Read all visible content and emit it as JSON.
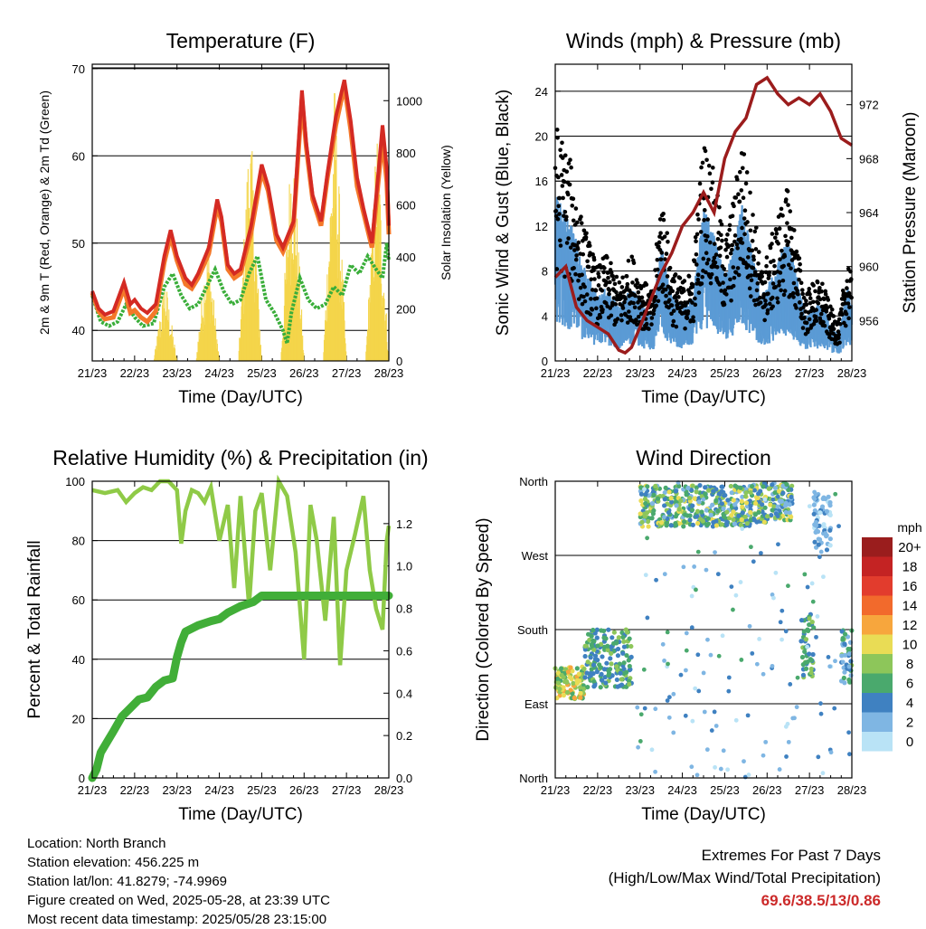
{
  "x_ticks": [
    "21/23",
    "22/23",
    "23/23",
    "24/23",
    "25/23",
    "26/23",
    "27/23",
    "28/23"
  ],
  "colors": {
    "temp_2m": "#d42a23",
    "temp_9m": "#f4782a",
    "dewpoint": "#3aae3a",
    "solar": "#f4d54a",
    "wind": "#5b9bd5",
    "gust": "#000000",
    "pressure": "#9b1c1c",
    "rh": "#8fca47",
    "precip": "#41ae38"
  },
  "chart_data": [
    {
      "type": "line",
      "title": "Temperature (F)",
      "xlabel": "Time (Day/UTC)",
      "ylabel": "2m & 9m T (Red, Orange) & 2m Td (Green)",
      "ylabel_right": "Solar Insolation (Yellow)",
      "ylim": [
        36.5,
        70.5
      ],
      "yticks": [
        40,
        50,
        60,
        70
      ],
      "ylim_right": [
        0,
        1140
      ],
      "yticks_right": [
        0,
        200,
        400,
        600,
        800,
        1000
      ],
      "x_days": [
        0,
        7
      ],
      "series": [
        {
          "key": "t2m",
          "x": [
            0,
            0.15,
            0.3,
            0.5,
            0.75,
            0.9,
            1.0,
            1.15,
            1.3,
            1.5,
            1.7,
            1.85,
            2.0,
            2.2,
            2.35,
            2.5,
            2.75,
            2.95,
            3.05,
            3.2,
            3.35,
            3.5,
            3.75,
            4.0,
            4.15,
            4.35,
            4.5,
            4.75,
            4.95,
            5.05,
            5.2,
            5.4,
            5.55,
            5.75,
            5.95,
            6.1,
            6.25,
            6.4,
            6.6,
            6.75,
            6.85,
            6.95,
            7.0
          ],
          "y": [
            44.5,
            42.5,
            41.8,
            42.2,
            45.5,
            43.0,
            43.5,
            42.5,
            42.0,
            43.0,
            48.5,
            51.5,
            48.5,
            46.0,
            45.2,
            46.5,
            49.5,
            55.0,
            53.0,
            47.5,
            46.5,
            47.0,
            52.0,
            59.0,
            56.5,
            51.0,
            49.5,
            52.5,
            67.5,
            61.5,
            55.5,
            52.5,
            58.0,
            64.5,
            68.7,
            64.0,
            57.5,
            54.0,
            50.0,
            58.0,
            63.5,
            58.5,
            52.0
          ]
        },
        {
          "key": "t9m",
          "x": [
            0,
            0.15,
            0.3,
            0.5,
            0.75,
            0.9,
            1.0,
            1.15,
            1.3,
            1.5,
            1.7,
            1.85,
            2.0,
            2.2,
            2.35,
            2.5,
            2.75,
            2.95,
            3.05,
            3.2,
            3.35,
            3.5,
            3.75,
            4.0,
            4.15,
            4.35,
            4.5,
            4.75,
            4.95,
            5.05,
            5.2,
            5.4,
            5.55,
            5.75,
            5.95,
            6.1,
            6.25,
            6.4,
            6.6,
            6.75,
            6.85,
            6.95,
            7.0
          ],
          "y": [
            44.3,
            42.2,
            41.3,
            41.5,
            44.8,
            42.0,
            42.3,
            41.5,
            41.0,
            42.2,
            47.8,
            50.8,
            48.0,
            45.3,
            44.8,
            46.0,
            48.8,
            54.2,
            52.5,
            47.0,
            46.0,
            46.5,
            51.2,
            58.2,
            56.0,
            50.3,
            49.0,
            52.0,
            66.5,
            61.0,
            55.0,
            52.0,
            57.5,
            63.5,
            68.0,
            63.0,
            56.5,
            53.5,
            49.5,
            57.0,
            62.0,
            57.0,
            51.0
          ]
        },
        {
          "key": "td",
          "x": [
            0,
            0.2,
            0.4,
            0.6,
            0.8,
            1.0,
            1.2,
            1.45,
            1.7,
            1.9,
            2.1,
            2.3,
            2.5,
            2.7,
            2.9,
            3.1,
            3.3,
            3.5,
            3.7,
            3.9,
            4.1,
            4.3,
            4.5,
            4.6,
            4.7,
            4.9,
            5.1,
            5.3,
            5.5,
            5.7,
            5.9,
            6.1,
            6.3,
            6.5,
            6.7,
            6.85,
            6.95,
            7.0
          ],
          "y": [
            44.0,
            41.0,
            40.5,
            41.0,
            43.0,
            41.5,
            40.5,
            40.8,
            45.0,
            46.5,
            44.0,
            42.5,
            43.0,
            45.0,
            47.0,
            44.5,
            43.0,
            43.5,
            46.5,
            48.5,
            43.5,
            42.0,
            40.0,
            38.5,
            42.0,
            46.0,
            43.5,
            42.5,
            43.0,
            45.0,
            44.0,
            47.5,
            46.5,
            48.5,
            47.0,
            46.0,
            50.0,
            48.0
          ]
        }
      ],
      "solar_days": [
        {
          "start": 1.45,
          "peak": 1.72,
          "end": 2.0,
          "value": 330
        },
        {
          "start": 2.45,
          "peak": 2.72,
          "end": 3.0,
          "value": 520
        },
        {
          "start": 3.45,
          "peak": 3.72,
          "end": 4.0,
          "value": 1000
        },
        {
          "start": 4.45,
          "peak": 4.72,
          "end": 5.0,
          "value": 970
        },
        {
          "start": 5.45,
          "peak": 5.72,
          "end": 6.0,
          "value": 1100
        },
        {
          "start": 6.45,
          "peak": 6.72,
          "end": 7.0,
          "value": 940
        }
      ]
    },
    {
      "type": "scatter",
      "title": "Winds (mph) & Pressure (mb)",
      "xlabel": "Time (Day/UTC)",
      "ylabel": "Sonic Wind & Gust (Blue, Black)",
      "ylabel_right": "Station Pressure (Maroon)",
      "ylim": [
        0,
        26.4
      ],
      "yticks": [
        0,
        4,
        8,
        12,
        16,
        20,
        24
      ],
      "ylim_right": [
        953,
        975
      ],
      "yticks_right": [
        956,
        960,
        964,
        968,
        972
      ],
      "gust_envelope": {
        "x": [
          0,
          0.25,
          0.45,
          0.6,
          0.8,
          1.0,
          1.2,
          1.5,
          1.8,
          2.1,
          2.3,
          2.5,
          2.75,
          3.0,
          3.25,
          3.5,
          3.75,
          4.0,
          4.2,
          4.4,
          4.6,
          4.75,
          4.85,
          5.0,
          5.25,
          5.5,
          5.7,
          5.9,
          6.1,
          6.3,
          6.5,
          6.7,
          6.9,
          7.0
        ],
        "y": [
          18,
          16,
          14,
          11,
          9,
          7,
          8,
          6,
          8,
          6,
          5,
          13,
          7,
          6,
          7,
          17,
          14,
          9,
          12,
          17,
          13,
          10,
          7,
          8,
          11,
          13,
          9,
          5,
          6,
          6,
          4,
          3,
          8,
          6
        ]
      },
      "pressure": {
        "x": [
          0,
          0.25,
          0.5,
          0.75,
          1.0,
          1.25,
          1.5,
          1.65,
          1.8,
          2.0,
          2.25,
          2.5,
          2.75,
          3.0,
          3.25,
          3.5,
          3.75,
          4.0,
          4.25,
          4.5,
          4.75,
          5.0,
          5.25,
          5.5,
          5.75,
          6.0,
          6.25,
          6.5,
          6.75,
          7.0
        ],
        "y": [
          959.2,
          960.0,
          957.0,
          956.0,
          955.5,
          955.0,
          953.8,
          953.6,
          954.0,
          955.5,
          957.5,
          959.5,
          961.0,
          963.0,
          964.0,
          965.5,
          964.0,
          968.0,
          970.0,
          971.0,
          973.5,
          974.0,
          972.8,
          972.0,
          972.5,
          972.0,
          972.8,
          971.5,
          969.5,
          969.0
        ]
      }
    },
    {
      "type": "line",
      "title": "Relative Humidity (%) & Precipitation (in)",
      "xlabel": "Time (Day/UTC)",
      "ylabel": "Percent & Total Rainfall",
      "ylim": [
        0,
        100
      ],
      "yticks": [
        0,
        20,
        40,
        60,
        80,
        100
      ],
      "ylim_right": [
        0,
        1.4
      ],
      "yticks_right": [
        "0.0",
        "0.2",
        "0.4",
        "0.6",
        "0.8",
        "1.0",
        "1.2"
      ],
      "series": [
        {
          "key": "rh",
          "x": [
            0,
            0.3,
            0.6,
            0.8,
            1.0,
            1.2,
            1.4,
            1.6,
            1.8,
            2.0,
            2.1,
            2.2,
            2.35,
            2.5,
            2.65,
            2.8,
            3.0,
            3.2,
            3.35,
            3.5,
            3.7,
            3.85,
            4.0,
            4.2,
            4.4,
            4.6,
            4.8,
            5.0,
            5.15,
            5.3,
            5.5,
            5.7,
            5.85,
            6.0,
            6.2,
            6.4,
            6.55,
            6.7,
            6.85,
            6.95,
            7.0
          ],
          "y": [
            97,
            96,
            97,
            93,
            96,
            98,
            97,
            100,
            100,
            97,
            79,
            90,
            97,
            96,
            93,
            98,
            80,
            92,
            64,
            95,
            58,
            90,
            96,
            70,
            100,
            95,
            76,
            40,
            92,
            80,
            53,
            88,
            38,
            70,
            82,
            95,
            70,
            57,
            50,
            80,
            85
          ]
        },
        {
          "key": "precip",
          "x": [
            0,
            0.1,
            0.2,
            0.35,
            0.5,
            0.7,
            0.9,
            1.1,
            1.3,
            1.5,
            1.7,
            1.9,
            2.0,
            2.1,
            2.2,
            2.5,
            2.8,
            3.0,
            3.2,
            3.5,
            3.8,
            4.0,
            4.5,
            5.0,
            5.5,
            6.0,
            6.5,
            7.0
          ],
          "y": [
            0,
            0.04,
            0.12,
            0.17,
            0.22,
            0.29,
            0.33,
            0.37,
            0.38,
            0.43,
            0.46,
            0.47,
            0.57,
            0.64,
            0.69,
            0.72,
            0.74,
            0.75,
            0.78,
            0.81,
            0.83,
            0.86,
            0.86,
            0.86,
            0.86,
            0.86,
            0.86,
            0.86
          ]
        }
      ]
    },
    {
      "type": "scatter",
      "title": "Wind Direction",
      "xlabel": "Time (Day/UTC)",
      "ylabel": "Direction (Colored By Speed)",
      "yticks": [
        "North",
        "East",
        "South",
        "West",
        "North"
      ],
      "ylim": [
        0,
        360
      ],
      "legend": {
        "title": "mph",
        "labels": [
          "20+",
          "18",
          "16",
          "14",
          "12",
          "10",
          "8",
          "6",
          "4",
          "2",
          "0"
        ],
        "colors": [
          "#9a1d1d",
          "#c42323",
          "#e23c2d",
          "#f26a2c",
          "#f7a63d",
          "#e9dc55",
          "#8dc65a",
          "#4aa96d",
          "#3f81c1",
          "#7fb6e3",
          "#b9e3f6"
        ]
      },
      "clusters": [
        {
          "x": [
            0,
            0.7
          ],
          "y": [
            95,
            135
          ],
          "speed": [
            6,
            12
          ]
        },
        {
          "x": [
            0.7,
            1.8
          ],
          "y": [
            110,
            180
          ],
          "speed": [
            3,
            8
          ]
        },
        {
          "x": [
            2.0,
            4.6
          ],
          "y": [
            305,
            355
          ],
          "speed": [
            2,
            10
          ]
        },
        {
          "x": [
            4.6,
            5.6
          ],
          "y": [
            310,
            358
          ],
          "speed": [
            2,
            10
          ]
        },
        {
          "x": [
            6.1,
            6.5
          ],
          "y": [
            275,
            345
          ],
          "speed": [
            0,
            4
          ]
        },
        {
          "x": [
            5.8,
            6.1
          ],
          "y": [
            120,
            200
          ],
          "speed": [
            3,
            8
          ]
        },
        {
          "x": [
            6.75,
            7.0
          ],
          "y": [
            110,
            180
          ],
          "speed": [
            1,
            8
          ]
        }
      ]
    }
  ],
  "info": {
    "location": "Location: North Branch",
    "elevation": "Station elevation: 456.225 m",
    "latlon": "Station lat/lon: 41.8279; -74.9969",
    "created": "Figure created on Wed, 2025-05-28, at 23:39 UTC",
    "recent": "Most recent data timestamp: 2025/05/28 23:15:00"
  },
  "extremes": {
    "title": "Extremes For Past 7 Days",
    "subtitle": "(High/Low/Max Wind/Total Precipitation)",
    "values": "69.6/38.5/13/0.86"
  }
}
